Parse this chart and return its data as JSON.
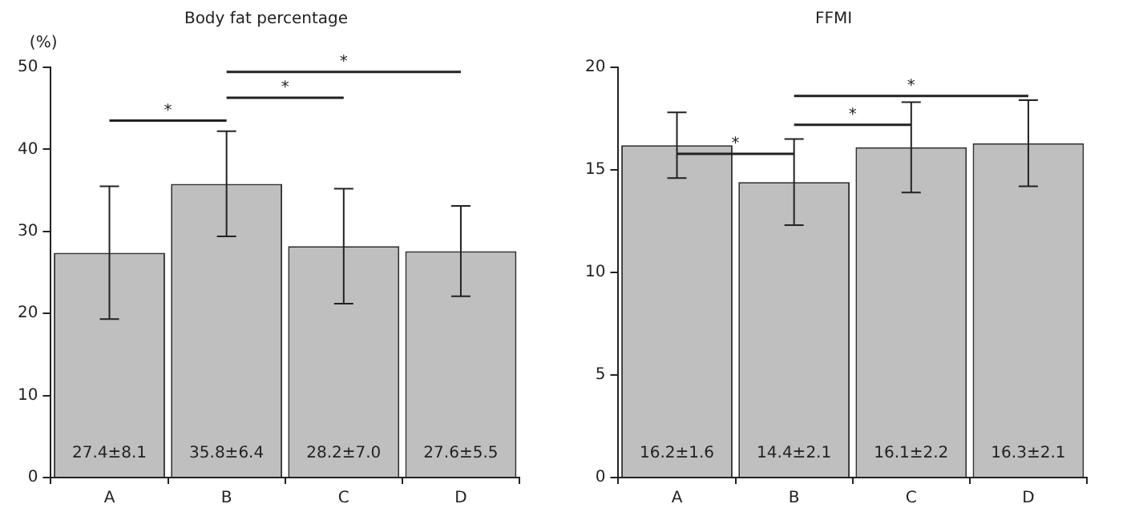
{
  "chart_data": [
    {
      "type": "bar",
      "title": "Body fat percentage",
      "ylabel": "(%)",
      "categories": [
        "A",
        "B",
        "C",
        "D"
      ],
      "values": [
        27.4,
        35.8,
        28.2,
        27.6
      ],
      "errors": [
        8.1,
        6.4,
        7.0,
        5.5
      ],
      "value_labels": [
        "27.4±8.1",
        "35.8±6.4",
        "28.2±7.0",
        "27.6±5.5"
      ],
      "color": "#bfbfbf",
      "ylim": [
        0,
        50
      ],
      "yticks": [
        0,
        10,
        20,
        30,
        40,
        50
      ],
      "grid": false,
      "legend": false,
      "annotations": [
        "*",
        "*",
        "*"
      ]
    },
    {
      "type": "bar",
      "title": "FFMI",
      "categories": [
        "A",
        "B",
        "C",
        "D"
      ],
      "values": [
        16.2,
        14.4,
        16.1,
        16.3
      ],
      "errors": [
        1.6,
        2.1,
        2.2,
        2.1
      ],
      "value_labels": [
        "16.2±1.6",
        "14.4±2.1",
        "16.1±2.2",
        "16.3±2.1"
      ],
      "color": "#bfbfbf",
      "ylim": [
        0,
        20
      ],
      "yticks": [
        0,
        5,
        10,
        15,
        20
      ],
      "grid": false,
      "legend": false,
      "annotations": [
        "*",
        "*",
        "*"
      ]
    }
  ]
}
